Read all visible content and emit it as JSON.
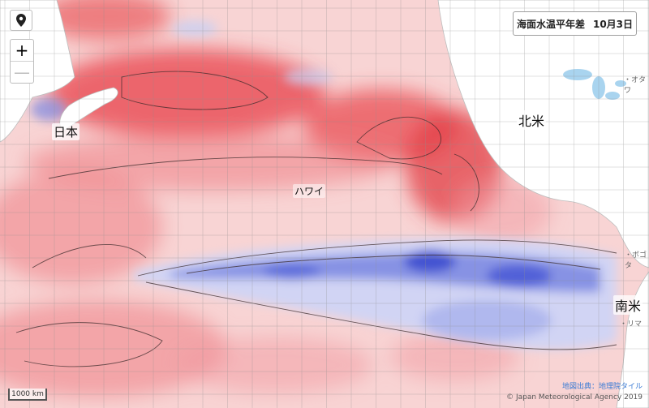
{
  "title": {
    "main": "海面水温平年差",
    "date": "10月3日"
  },
  "controls": {
    "locate_icon": "map-pin-icon",
    "zoom_in": "+",
    "zoom_out": "—"
  },
  "places": {
    "japan": "日本",
    "north_america": "北米",
    "hawaii": "ハワイ",
    "south_america": "南米"
  },
  "cities": {
    "north_america_city": "・オタワ",
    "central_america_city": "・ボゴタ",
    "south_america_city": "・リマ"
  },
  "scale": {
    "label": "1000 km"
  },
  "attribution": {
    "tiles": "地図出典：地理院タイル",
    "copyright": "© Japan Meteorological Agency 2019"
  },
  "legend_colors": {
    "warm": "#e8424a",
    "warm_light": "#f6b0b0",
    "neutral": "#fbeaea",
    "cool_light": "#c9cff2",
    "cool": "#3e4fd0",
    "land": "#ffffff",
    "grid": "#b0b0b0"
  }
}
